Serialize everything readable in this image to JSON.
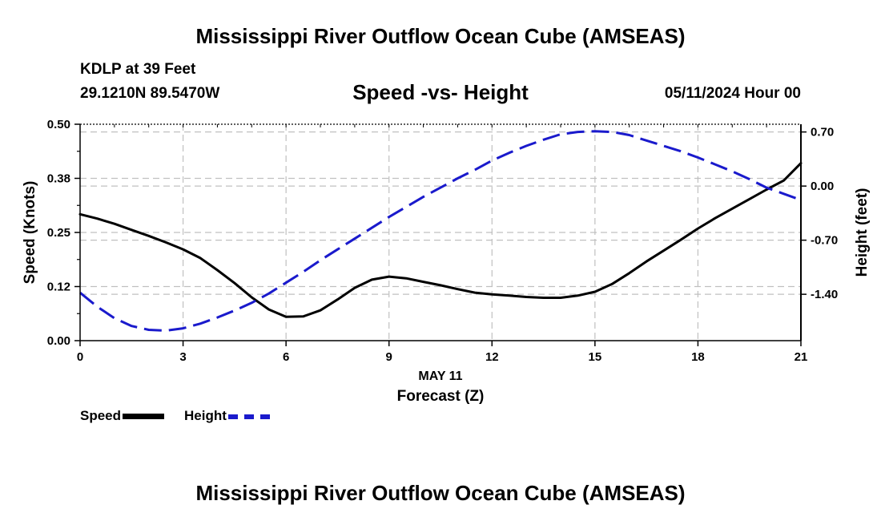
{
  "page": {
    "title_top": "Mississippi River Outflow Ocean Cube (AMSEAS)",
    "title_bottom": "Mississippi River Outflow Ocean Cube (AMSEAS)",
    "station": "KDLP at 39 Feet",
    "coords": "29.1210N  89.5470W",
    "subtitle": "Speed -vs- Height",
    "datetime": "05/11/2024 Hour 00"
  },
  "colors": {
    "speed": "#000000",
    "height": "#1a1acc",
    "grid": "#c0c0c0"
  },
  "legend": {
    "speed_label": "Speed",
    "height_label": "Height"
  },
  "chart_data": {
    "type": "line",
    "title": "Speed -vs- Height",
    "xlabel": "Forecast (Z)",
    "xsublabel": "MAY 11",
    "xlim": [
      0,
      21
    ],
    "x_ticks": [
      0,
      3,
      6,
      9,
      12,
      15,
      18,
      21
    ],
    "x_tick_labels": [
      "0",
      "3",
      "6",
      "9",
      "12",
      "15",
      "18",
      "21"
    ],
    "y_left": {
      "label": "Speed (Knots)",
      "lim": [
        0,
        0.5
      ],
      "ticks": [
        0,
        0.125,
        0.25,
        0.375,
        0.5
      ],
      "tick_labels": [
        "0.00",
        "0.12",
        "0.25",
        "0.38",
        "0.50"
      ]
    },
    "y_right": {
      "label": "Height (feet)",
      "lim": [
        -2.0,
        0.8
      ],
      "ticks": [
        -1.4,
        -0.7,
        0.0,
        0.7
      ],
      "tick_labels": [
        "-1.40",
        "-0.70",
        "0.00",
        "0.70"
      ]
    },
    "grid": true,
    "series": [
      {
        "name": "Speed",
        "axis": "left",
        "style": "solid",
        "x": [
          0,
          0.5,
          1,
          1.5,
          2,
          2.5,
          3,
          3.5,
          4,
          4.5,
          5,
          5.5,
          6,
          6.5,
          7,
          7.5,
          8,
          8.5,
          9,
          9.5,
          10,
          10.5,
          11,
          11.5,
          12,
          12.5,
          13,
          13.5,
          14,
          14.5,
          15,
          15.5,
          16,
          16.5,
          17,
          17.5,
          18,
          18.5,
          19,
          19.5,
          20,
          20.5,
          21
        ],
        "values": [
          0.292,
          0.282,
          0.27,
          0.256,
          0.242,
          0.227,
          0.211,
          0.191,
          0.163,
          0.133,
          0.1,
          0.072,
          0.055,
          0.056,
          0.07,
          0.095,
          0.122,
          0.141,
          0.148,
          0.144,
          0.136,
          0.128,
          0.119,
          0.111,
          0.107,
          0.104,
          0.101,
          0.099,
          0.099,
          0.104,
          0.113,
          0.131,
          0.156,
          0.183,
          0.208,
          0.233,
          0.259,
          0.283,
          0.305,
          0.327,
          0.349,
          0.37,
          0.41
        ]
      },
      {
        "name": "Height",
        "axis": "right",
        "style": "dashed",
        "x": [
          0,
          0.5,
          1,
          1.5,
          2,
          2.5,
          3,
          3.5,
          4,
          4.5,
          5,
          5.5,
          6,
          6.5,
          7,
          7.5,
          8,
          8.5,
          9,
          9.5,
          10,
          10.5,
          11,
          11.5,
          12,
          12.5,
          13,
          13.5,
          14,
          14.5,
          15,
          15.5,
          16,
          16.5,
          17,
          17.5,
          18,
          18.5,
          19,
          19.5,
          20,
          20.5,
          21
        ],
        "values": [
          -1.38,
          -1.56,
          -1.71,
          -1.81,
          -1.86,
          -1.87,
          -1.84,
          -1.78,
          -1.7,
          -1.61,
          -1.51,
          -1.39,
          -1.25,
          -1.11,
          -0.96,
          -0.82,
          -0.68,
          -0.54,
          -0.4,
          -0.27,
          -0.14,
          -0.02,
          0.1,
          0.21,
          0.33,
          0.43,
          0.52,
          0.6,
          0.67,
          0.7,
          0.71,
          0.7,
          0.66,
          0.59,
          0.52,
          0.45,
          0.37,
          0.28,
          0.19,
          0.09,
          -0.02,
          -0.1,
          -0.18
        ]
      }
    ]
  }
}
